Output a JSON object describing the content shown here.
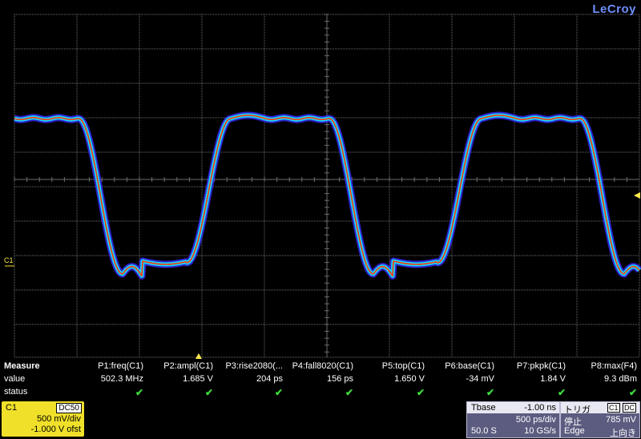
{
  "brand": "LeCroy",
  "channel_tag": "C1",
  "colors": {
    "grid": "#6e6e6e",
    "trace_outer": "#3a2bff",
    "trace_mid": "#16d7ff",
    "trace_core": "#ff3a00",
    "channel": "#f0e02a"
  },
  "measure": {
    "heading": "Measure",
    "row_value": "value",
    "row_status": "status",
    "params": [
      {
        "name": "P1:freq(C1)",
        "value": "502.3 MHz"
      },
      {
        "name": "P2:ampl(C1)",
        "value": "1.685 V"
      },
      {
        "name": "P3:rise2080(...",
        "value": "204 ps"
      },
      {
        "name": "P4:fall8020(C1)",
        "value": "156 ps"
      },
      {
        "name": "P5:top(C1)",
        "value": "1.650 V"
      },
      {
        "name": "P6:base(C1)",
        "value": "-34 mV"
      },
      {
        "name": "P7:pkpk(C1)",
        "value": "1.84 V"
      },
      {
        "name": "P8:max(F4)",
        "value": "9.3 dBm"
      }
    ],
    "status_mark": "✔"
  },
  "channel_box": {
    "name": "C1",
    "coupling": "DC50",
    "vdiv": "500 mV/div",
    "offset": "-1.000 V ofst"
  },
  "timebase": {
    "label": "Tbase",
    "delay": "-1.00 ns",
    "tdiv": "500 ps/div",
    "samples": "50.0 S",
    "rate": "10 GS/s"
  },
  "trigger": {
    "label": "トリガ",
    "source": "C1",
    "coupling": "DC",
    "mode": "停止",
    "level": "785 mV",
    "type": "Edge",
    "slope": "上向き"
  }
}
